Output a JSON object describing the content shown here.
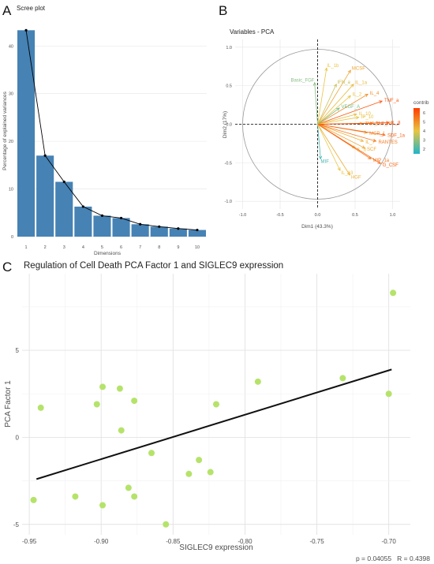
{
  "panel_labels": [
    "A",
    "B",
    "C"
  ],
  "colors": {
    "bar": "#4682b4",
    "line": "#000000",
    "grid": "#e4e4e4",
    "circle": "#999999",
    "dashed": "#000000",
    "point": "#b5e36a",
    "fit": "#111111",
    "contrib_low": "#1fb5c9",
    "contrib_mid": "#e8c542",
    "contrib_high": "#ff3c00"
  },
  "chart_data": [
    {
      "type": "bar",
      "title": "Scree plot",
      "xlabel": "Dimensions",
      "ylabel": "Percentage of explained variances",
      "categories": [
        "1",
        "2",
        "3",
        "4",
        "5",
        "6",
        "7",
        "8",
        "9",
        "10"
      ],
      "values": [
        43.3,
        17.0,
        11.5,
        6.3,
        4.4,
        3.9,
        2.6,
        2.1,
        1.7,
        1.4
      ],
      "line_overlay": true,
      "ylim": [
        0,
        46
      ],
      "yticks": [
        0,
        10,
        20,
        30,
        40
      ],
      "grid": true
    },
    {
      "type": "scatter",
      "subtype": "pca-variable-correlation-circle",
      "title": "Variables - PCA",
      "xlabel": "Dim1 (43.3%)",
      "ylabel": "Dim2 (17%)",
      "xlim": [
        -1.1,
        1.1
      ],
      "ylim": [
        -1.1,
        1.1
      ],
      "xticks": [
        "-1.0",
        "-0.5",
        "0.0",
        "0.5",
        "1.0"
      ],
      "yticks": [
        "-1.0",
        "-0.5",
        "0.0",
        "0.5",
        "1.0"
      ],
      "legend": {
        "title": "contrib",
        "ticks": [
          2,
          3,
          4,
          5,
          6
        ],
        "range": [
          1.5,
          6.5
        ],
        "placement": "right"
      },
      "vectors": [
        {
          "label": "IL_1b",
          "x": 0.12,
          "y": 0.73,
          "contrib": 4.0
        },
        {
          "label": "MCSF",
          "x": 0.44,
          "y": 0.7,
          "contrib": 4.6
        },
        {
          "label": "Basic_FGF",
          "x": -0.04,
          "y": 0.54,
          "contrib": 2.8
        },
        {
          "label": "IFN_a",
          "x": 0.25,
          "y": 0.52,
          "contrib": 3.6
        },
        {
          "label": "IL_1a",
          "x": 0.48,
          "y": 0.52,
          "contrib": 4.2
        },
        {
          "label": "IL_2",
          "x": 0.44,
          "y": 0.37,
          "contrib": 4.0
        },
        {
          "label": "IL_4",
          "x": 0.67,
          "y": 0.39,
          "contrib": 5.0
        },
        {
          "label": "TNF_a",
          "x": 0.86,
          "y": 0.3,
          "contrib": 6.0
        },
        {
          "label": "VEGF_A",
          "x": 0.29,
          "y": 0.21,
          "contrib": 2.6
        },
        {
          "label": "IL_10",
          "x": 0.52,
          "y": 0.13,
          "contrib": 4.2
        },
        {
          "label": "IP_10",
          "x": 0.55,
          "y": 0.09,
          "contrib": 4.0
        },
        {
          "label": "TNF_b",
          "x": 0.6,
          "y": 0.01,
          "contrib": 4.6
        },
        {
          "label": "TNF_RII",
          "x": 0.74,
          "y": 0.01,
          "contrib": 5.6
        },
        {
          "label": "IL_8",
          "x": 0.95,
          "y": 0.02,
          "contrib": 6.0
        },
        {
          "label": "MCP_1",
          "x": 0.66,
          "y": -0.11,
          "contrib": 4.8
        },
        {
          "label": "SDF_1a",
          "x": 0.9,
          "y": -0.14,
          "contrib": 5.8
        },
        {
          "label": "IL_7",
          "x": 0.61,
          "y": -0.22,
          "contrib": 4.4
        },
        {
          "label": "RANTES",
          "x": 0.78,
          "y": -0.22,
          "contrib": 5.4
        },
        {
          "label": "IL_6",
          "x": 0.5,
          "y": -0.31,
          "contrib": 4.0
        },
        {
          "label": "SCF",
          "x": 0.63,
          "y": -0.31,
          "contrib": 4.6
        },
        {
          "label": "MIP_1a",
          "x": 0.71,
          "y": -0.45,
          "contrib": 5.4
        },
        {
          "label": "G_CSF",
          "x": 0.84,
          "y": -0.51,
          "contrib": 5.8
        },
        {
          "label": "MIF",
          "x": 0.04,
          "y": -0.45,
          "contrib": 2.0
        },
        {
          "label": "IL_13",
          "x": 0.3,
          "y": -0.6,
          "contrib": 4.0
        },
        {
          "label": "HGF",
          "x": 0.43,
          "y": -0.66,
          "contrib": 4.4
        }
      ]
    },
    {
      "type": "scatter",
      "title": "Regulation of Cell Death PCA Factor 1 and SIGLEC9 expression",
      "xlabel": "SIGLEC9 expression",
      "ylabel": "PCA Factor 1",
      "xlim": [
        -0.955,
        -0.685
      ],
      "ylim": [
        -5.6,
        9.4
      ],
      "xticks": [
        -0.95,
        -0.9,
        -0.85,
        -0.8,
        -0.75,
        -0.7
      ],
      "xtick_labels": [
        "-0.95",
        "-0.90",
        "-0.85",
        "-0.80",
        "-0.75",
        "-0.70"
      ],
      "yticks": [
        -5,
        0,
        5
      ],
      "points": [
        {
          "x": -0.942,
          "y": 1.7
        },
        {
          "x": -0.947,
          "y": -3.6
        },
        {
          "x": -0.918,
          "y": -3.4
        },
        {
          "x": -0.903,
          "y": 1.9
        },
        {
          "x": -0.899,
          "y": 2.9
        },
        {
          "x": -0.899,
          "y": -3.9
        },
        {
          "x": -0.887,
          "y": 2.8
        },
        {
          "x": -0.886,
          "y": 0.4
        },
        {
          "x": -0.881,
          "y": -2.9
        },
        {
          "x": -0.877,
          "y": 2.1
        },
        {
          "x": -0.877,
          "y": -3.4
        },
        {
          "x": -0.865,
          "y": -0.9
        },
        {
          "x": -0.855,
          "y": -5.0
        },
        {
          "x": -0.839,
          "y": -2.1
        },
        {
          "x": -0.832,
          "y": -1.3
        },
        {
          "x": -0.824,
          "y": -2.0
        },
        {
          "x": -0.82,
          "y": 1.9
        },
        {
          "x": -0.791,
          "y": 3.2
        },
        {
          "x": -0.732,
          "y": 3.4
        },
        {
          "x": -0.7,
          "y": 2.5
        },
        {
          "x": -0.697,
          "y": 8.3
        }
      ],
      "fit_line": {
        "x": [
          -0.945,
          -0.698
        ],
        "y": [
          -2.4,
          3.9
        ]
      },
      "annotation": "p = 0.04055   R = 0.4398"
    }
  ]
}
